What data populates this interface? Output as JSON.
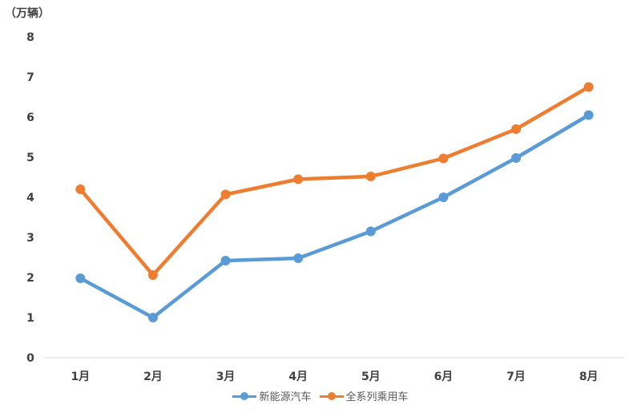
{
  "chart_data": {
    "type": "line",
    "unit_label": "（万辆）",
    "categories": [
      "1月",
      "2月",
      "3月",
      "4月",
      "5月",
      "6月",
      "7月",
      "8月"
    ],
    "ylim": [
      0,
      8
    ],
    "yticks": [
      "0",
      "1",
      "2",
      "3",
      "4",
      "5",
      "6",
      "7",
      "8"
    ],
    "grid": false,
    "legend_position": "bottom",
    "series": [
      {
        "name": "新能源汽车",
        "color": "#5B9BD5",
        "values": [
          1.98,
          1.0,
          2.42,
          2.48,
          3.15,
          4.0,
          4.98,
          6.05
        ]
      },
      {
        "name": "全系列乘用车",
        "color": "#ED7D31",
        "values": [
          4.2,
          2.06,
          4.07,
          4.45,
          4.52,
          4.97,
          5.7,
          6.75
        ]
      }
    ]
  }
}
